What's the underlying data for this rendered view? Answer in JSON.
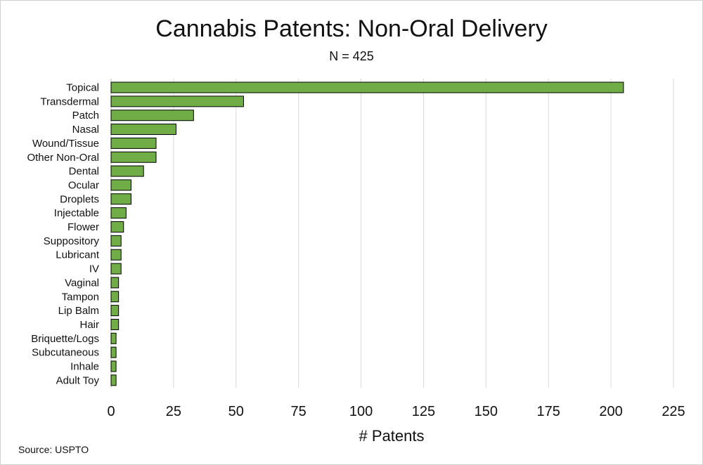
{
  "chart_data": {
    "type": "bar",
    "orientation": "horizontal",
    "title": "Cannabis Patents: Non-Oral Delivery",
    "subtitle": "N = 425",
    "xlabel": "# Patents",
    "ylabel": "",
    "source": "Source: USPTO",
    "categories": [
      "Topical",
      "Transdermal",
      "Patch",
      "Nasal",
      "Wound/Tissue",
      "Other Non-Oral",
      "Dental",
      "Ocular",
      "Droplets",
      "Injectable",
      "Flower",
      "Suppository",
      "Lubricant",
      "IV",
      "Vaginal",
      "Tampon",
      "Lip Balm",
      "Hair",
      "Briquette/Logs",
      "Subcutaneous",
      "Inhale",
      "Adult Toy"
    ],
    "values": [
      205,
      53,
      33,
      26,
      18,
      18,
      13,
      8,
      8,
      6,
      5,
      4,
      4,
      4,
      3,
      3,
      3,
      3,
      2,
      2,
      2,
      2
    ],
    "xlim": [
      0,
      225
    ],
    "xticks": [
      0,
      25,
      50,
      75,
      100,
      125,
      150,
      175,
      200,
      225
    ],
    "grid": "vertical",
    "legend": "none",
    "bar_color": "#70ad47",
    "bar_edge_color": "#000000"
  }
}
